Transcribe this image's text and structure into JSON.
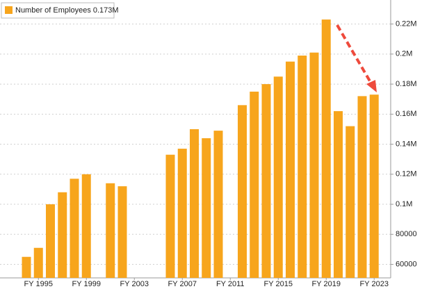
{
  "chart_data": {
    "type": "bar",
    "categories": [
      null,
      "FY 1995",
      null,
      null,
      null,
      "FY 1999",
      null,
      null,
      null,
      "FY 2003",
      null,
      null,
      null,
      "FY 2007",
      null,
      null,
      null,
      "FY 2011",
      null,
      null,
      null,
      "FY 2015",
      null,
      null,
      null,
      "FY 2019",
      null,
      null,
      null,
      "FY 2023"
    ],
    "series": [
      {
        "name": "Number of Employees 0.173M",
        "color": "#f7a51c",
        "values": [
          65000,
          71000,
          100000,
          108000,
          117000,
          120000,
          null,
          114000,
          112000,
          null,
          null,
          null,
          133000,
          137000,
          150000,
          144000,
          149000,
          null,
          166000,
          175000,
          180000,
          185000,
          195000,
          199000,
          201000,
          223000,
          162000,
          152000,
          172000,
          173000
        ]
      }
    ],
    "ylim": [
      51000,
      236000
    ],
    "yticks": [
      60000,
      80000,
      {
        "value": 100000,
        "label": "0.1M"
      },
      {
        "value": 120000,
        "label": "0.12M"
      },
      {
        "value": 140000,
        "label": "0.14M"
      },
      {
        "value": 160000,
        "label": "0.16M"
      },
      {
        "value": 180000,
        "label": "0.18M"
      },
      {
        "value": 200000,
        "label": "0.2M"
      },
      {
        "value": 220000,
        "label": "0.22M"
      }
    ],
    "grid": true,
    "legend": "top-left"
  }
}
